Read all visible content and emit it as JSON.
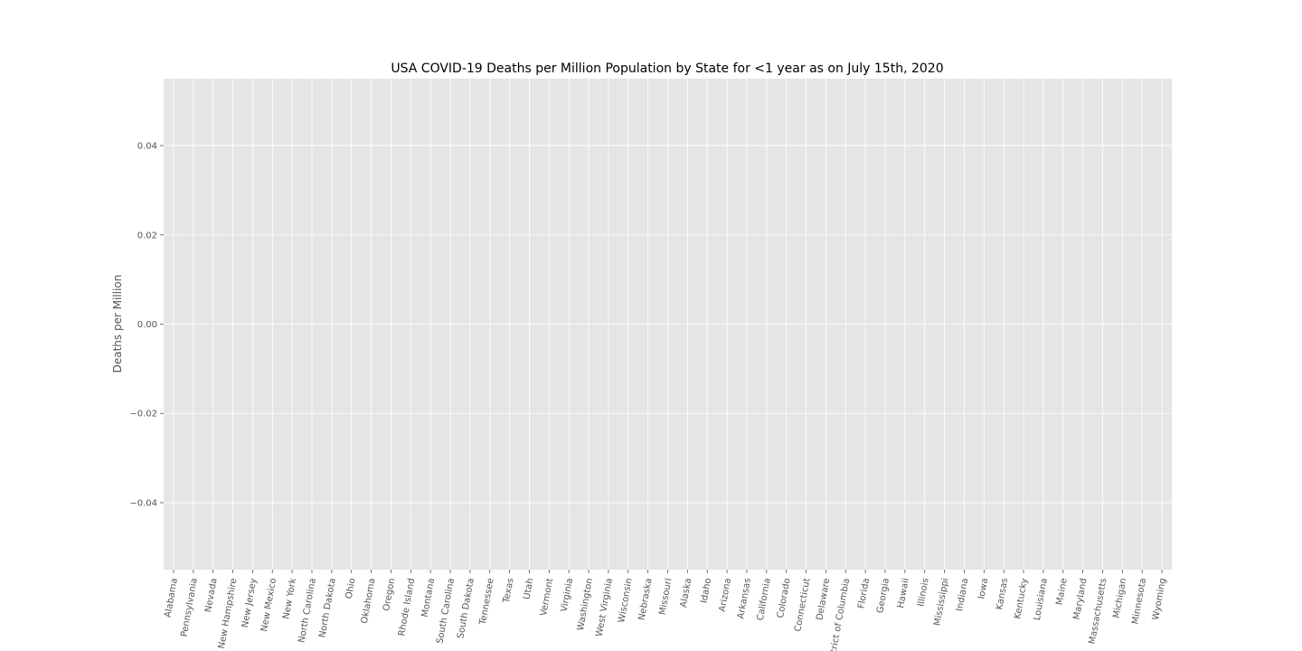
{
  "chart_data": {
    "type": "bar",
    "title": "USA COVID-19 Deaths per Million Population by State for <1 year as on July 15th, 2020",
    "xlabel": "",
    "ylabel": "Deaths per Million",
    "ylim": [
      -0.055,
      0.055
    ],
    "yticks": [
      0.04,
      0.02,
      0.0,
      -0.02,
      -0.04
    ],
    "ytick_labels": [
      "0.04",
      "0.02",
      "0.00",
      "−0.02",
      "−0.04"
    ],
    "grid": true,
    "legend": "none",
    "categories": [
      "Alabama",
      "Pennsylvania",
      "Nevada",
      "New Hampshire",
      "New Jersey",
      "New Mexico",
      "New York",
      "North Carolina",
      "North Dakota",
      "Ohio",
      "Oklahoma",
      "Oregon",
      "Rhode Island",
      "Montana",
      "South Carolina",
      "South Dakota",
      "Tennessee",
      "Texas",
      "Utah",
      "Vermont",
      "Virginia",
      "Washington",
      "West Virginia",
      "Wisconsin",
      "Nebraska",
      "Missouri",
      "Alaska",
      "Idaho",
      "Arizona",
      "Arkansas",
      "California",
      "Colorado",
      "Connecticut",
      "Delaware",
      "District of Columbia",
      "Florida",
      "Georgia",
      "Hawaii",
      "Illinois",
      "Mississippi",
      "Indiana",
      "Iowa",
      "Kansas",
      "Kentucky",
      "Louisiana",
      "Maine",
      "Maryland",
      "Massachusetts",
      "Michigan",
      "Minnesota",
      "Wyoming"
    ],
    "values": [
      0,
      0,
      0,
      0,
      0,
      0,
      0,
      0,
      0,
      0,
      0,
      0,
      0,
      0,
      0,
      0,
      0,
      0,
      0,
      0,
      0,
      0,
      0,
      0,
      0,
      0,
      0,
      0,
      0,
      0,
      0,
      0,
      0,
      0,
      0,
      0,
      0,
      0,
      0,
      0,
      0,
      0,
      0,
      0,
      0,
      0,
      0,
      0,
      0,
      0,
      0
    ],
    "colors": {
      "background": "#e5e5e5",
      "grid": "#ffffff",
      "tick_text": "#555555",
      "title_text": "#000000",
      "bar": "#e24a33"
    }
  }
}
